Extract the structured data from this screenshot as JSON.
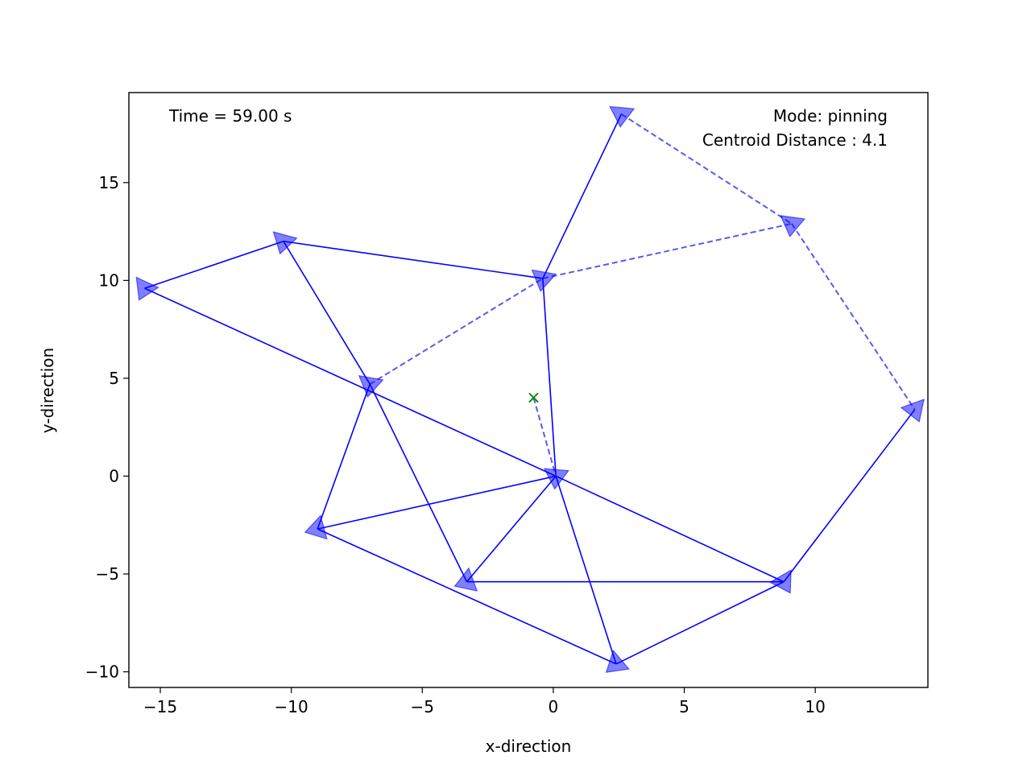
{
  "chart_data": {
    "type": "network",
    "title": "",
    "xlabel": "x-direction",
    "ylabel": "y-direction",
    "xlim": [
      -16.2,
      14.3
    ],
    "ylim": [
      -10.8,
      19.6
    ],
    "xticks": [
      -15,
      -10,
      -5,
      0,
      5,
      10
    ],
    "yticks": [
      -10,
      -5,
      0,
      5,
      10,
      15
    ],
    "xtick_labels": [
      "−15",
      "−10",
      "−5",
      "0",
      "5",
      "10"
    ],
    "ytick_labels": [
      "−10",
      "−5",
      "0",
      "5",
      "10",
      "15"
    ],
    "annotations": {
      "time": "Time = 59.00 s",
      "mode": "Mode: pinning",
      "centroid": "Centroid Distance : 4.1"
    },
    "centroid_marker": {
      "x": -0.75,
      "y": 4.0,
      "symbol": "×"
    },
    "colors": {
      "agent_fill": "#0000ff",
      "agent_alpha": 0.5,
      "solid_edge": "#0000ff",
      "dashed_edge": "#5a5aef",
      "centroid_marker": "#008000"
    },
    "agents": [
      {
        "x": 2.6,
        "y": 18.5,
        "heading": 95
      },
      {
        "x": 9.1,
        "y": 12.9,
        "heading": 98
      },
      {
        "x": -0.4,
        "y": 10.1,
        "heading": 100
      },
      {
        "x": -10.3,
        "y": 12.0,
        "heading": 105
      },
      {
        "x": -15.6,
        "y": 9.6,
        "heading": 115
      },
      {
        "x": -7.0,
        "y": 4.7,
        "heading": 100
      },
      {
        "x": 13.8,
        "y": 3.4,
        "heading": 70
      },
      {
        "x": 0.1,
        "y": 0.0,
        "heading": 95
      },
      {
        "x": -9.0,
        "y": -2.7,
        "heading": 165
      },
      {
        "x": -3.3,
        "y": -5.4,
        "heading": 160
      },
      {
        "x": 8.8,
        "y": -5.4,
        "heading": 60
      },
      {
        "x": 2.4,
        "y": -9.6,
        "heading": 140
      }
    ],
    "solid_edges": [
      [
        0,
        2
      ],
      [
        2,
        3
      ],
      [
        3,
        4
      ],
      [
        3,
        5
      ],
      [
        2,
        7
      ],
      [
        4,
        7
      ],
      [
        5,
        8
      ],
      [
        5,
        9
      ],
      [
        8,
        7
      ],
      [
        7,
        9
      ],
      [
        9,
        10
      ],
      [
        7,
        10
      ],
      [
        7,
        11
      ],
      [
        10,
        11
      ],
      [
        8,
        11
      ],
      [
        6,
        10
      ]
    ],
    "dashed_edges": [
      [
        0,
        1
      ],
      [
        2,
        1
      ],
      [
        1,
        6
      ],
      [
        5,
        2
      ]
    ],
    "centroid_link": {
      "from_agent": 7
    }
  }
}
